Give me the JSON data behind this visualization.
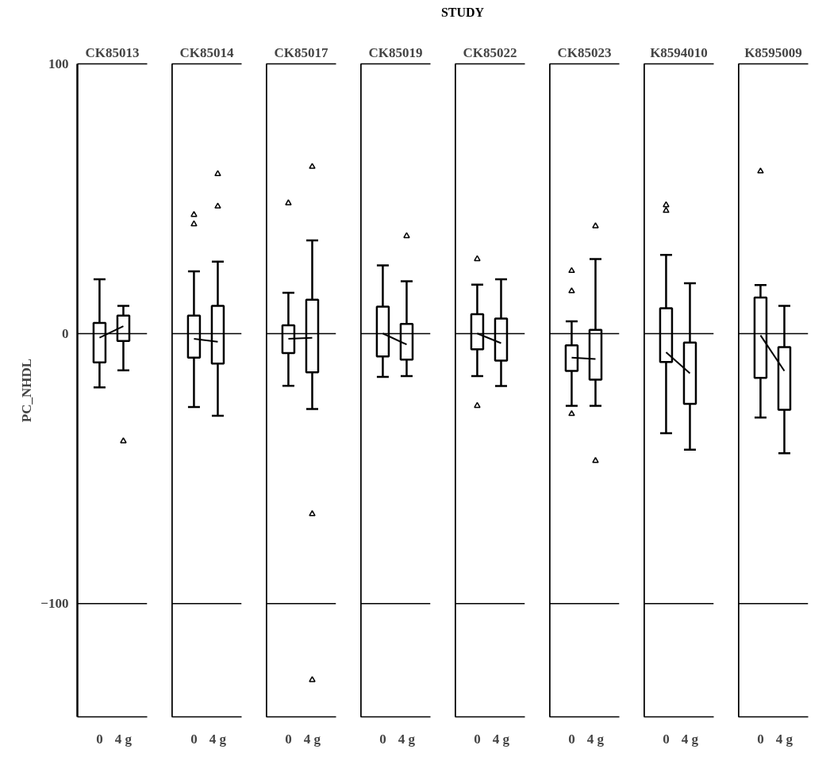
{
  "chart_data": [
    {
      "type": "box",
      "title": "CK85013",
      "ylabel": "PC_NHDL",
      "annotations": [
        "STUDY"
      ],
      "categories": [
        "0",
        "4 g"
      ],
      "ylim": [
        -142,
        100
      ],
      "yticks": [
        100,
        0,
        -100
      ],
      "marker": "triangle",
      "grid": false,
      "ref_lines": [
        {
          "axis": "y",
          "value": 0
        },
        {
          "axis": "y",
          "value": -100
        }
      ],
      "boxes": [
        {
          "low": -19.9,
          "q1": -10.6,
          "median": -1.5,
          "q3": 4.0,
          "high": 20.2
        },
        {
          "low": -13.6,
          "q1": -2.7,
          "median": 2.8,
          "q3": 6.7,
          "high": 10.3,
          "outliers": [
            -39.8
          ]
        }
      ],
      "series": [
        {
          "type": "line",
          "values": [
            -1.5,
            2.8
          ],
          "marker": "none"
        }
      ]
    },
    {
      "type": "box",
      "title": "CK85014",
      "categories": [
        "0",
        "4 g"
      ],
      "ylim": [
        -142,
        100
      ],
      "tick_labels": "x",
      "marker": "triangle",
      "grid": false,
      "ref_lines": [
        {
          "axis": "y",
          "value": 0
        },
        {
          "axis": "y",
          "value": -100
        }
      ],
      "boxes": [
        {
          "low": -27.2,
          "q1": -8.9,
          "median": -1.9,
          "q3": 6.7,
          "high": 23.1,
          "outliers": [
            44.1,
            40.6
          ]
        },
        {
          "low": -30.4,
          "q1": -11.1,
          "median": -3.0,
          "q3": 10.3,
          "high": 26.7,
          "outliers": [
            59.2,
            47.2
          ]
        }
      ],
      "series": [
        {
          "type": "line",
          "values": [
            -1.9,
            -3.0
          ],
          "marker": "none"
        }
      ]
    },
    {
      "type": "box",
      "title": "CK85017",
      "categories": [
        "0",
        "4 g"
      ],
      "ylim": [
        -142,
        100
      ],
      "tick_labels": "x",
      "marker": "triangle",
      "grid": false,
      "ref_lines": [
        {
          "axis": "y",
          "value": 0
        },
        {
          "axis": "y",
          "value": -100
        }
      ],
      "boxes": [
        {
          "low": -19.3,
          "q1": -7.2,
          "median": -1.9,
          "q3": 3.1,
          "high": 15.2,
          "outliers": [
            48.4
          ]
        },
        {
          "low": -27.9,
          "q1": -14.3,
          "median": -1.5,
          "q3": 12.6,
          "high": 34.6,
          "outliers": [
            61.9,
            -66.8,
            -128.3
          ]
        }
      ],
      "series": [
        {
          "type": "line",
          "values": [
            -1.9,
            -1.5
          ],
          "marker": "none"
        }
      ]
    },
    {
      "type": "box",
      "title": "CK85019",
      "categories": [
        "0",
        "4 g"
      ],
      "ylim": [
        -142,
        100
      ],
      "tick_labels": "x",
      "marker": "triangle",
      "grid": false,
      "ref_lines": [
        {
          "axis": "y",
          "value": 0
        },
        {
          "axis": "y",
          "value": -100
        }
      ],
      "boxes": [
        {
          "low": -16.0,
          "q1": -8.4,
          "median": 0.1,
          "q3": 10.0,
          "high": 25.3
        },
        {
          "low": -15.7,
          "q1": -9.6,
          "median": -4.0,
          "q3": 3.6,
          "high": 19.4,
          "outliers": [
            36.2
          ]
        }
      ],
      "series": [
        {
          "type": "line",
          "values": [
            0.1,
            -4.0
          ],
          "marker": "none"
        }
      ]
    },
    {
      "type": "box",
      "title": "CK85022",
      "categories": [
        "0",
        "4 g"
      ],
      "ylim": [
        -142,
        100
      ],
      "tick_labels": "x",
      "marker": "triangle",
      "grid": false,
      "ref_lines": [
        {
          "axis": "y",
          "value": 0
        },
        {
          "axis": "y",
          "value": -100
        }
      ],
      "boxes": [
        {
          "low": -15.7,
          "q1": -5.8,
          "median": 0.1,
          "q3": 7.2,
          "high": 18.2,
          "outliers": [
            27.7,
            -26.7
          ]
        },
        {
          "low": -19.4,
          "q1": -10.0,
          "median": -3.5,
          "q3": 5.6,
          "high": 20.2
        }
      ],
      "series": [
        {
          "type": "line",
          "values": [
            0.1,
            -3.5
          ],
          "marker": "none"
        }
      ]
    },
    {
      "type": "box",
      "title": "CK85023",
      "categories": [
        "0",
        "4 g"
      ],
      "ylim": [
        -142,
        100
      ],
      "tick_labels": "x",
      "marker": "triangle",
      "grid": false,
      "ref_lines": [
        {
          "axis": "y",
          "value": 0
        },
        {
          "axis": "y",
          "value": -100
        }
      ],
      "boxes": [
        {
          "low": -26.7,
          "q1": -13.8,
          "median": -8.9,
          "q3": -4.3,
          "high": 4.6,
          "outliers": [
            23.3,
            15.8,
            -29.7
          ]
        },
        {
          "low": -26.7,
          "q1": -17.0,
          "median": -9.4,
          "q3": 1.4,
          "high": 27.7,
          "outliers": [
            39.9,
            -47.1
          ]
        }
      ],
      "series": [
        {
          "type": "line",
          "values": [
            -8.9,
            -9.4
          ],
          "marker": "none"
        }
      ]
    },
    {
      "type": "box",
      "title": "K8594010",
      "categories": [
        "0",
        "4 g"
      ],
      "ylim": [
        -142,
        100
      ],
      "tick_labels": "x",
      "marker": "triangle",
      "grid": false,
      "ref_lines": [
        {
          "axis": "y",
          "value": 0
        },
        {
          "axis": "y",
          "value": -100
        }
      ],
      "boxes": [
        {
          "low": -36.9,
          "q1": -10.5,
          "median": -6.9,
          "q3": 9.4,
          "high": 29.2,
          "outliers": [
            47.7,
            45.6
          ]
        },
        {
          "low": -43.0,
          "q1": -26.0,
          "median": -14.7,
          "q3": -3.3,
          "high": 18.7
        }
      ],
      "series": [
        {
          "type": "line",
          "values": [
            -6.9,
            -14.7
          ],
          "marker": "none"
        }
      ]
    },
    {
      "type": "box",
      "title": "K8595009",
      "categories": [
        "0",
        "4 g"
      ],
      "ylim": [
        -142,
        100
      ],
      "tick_labels": "x",
      "marker": "triangle",
      "grid": false,
      "ref_lines": [
        {
          "axis": "y",
          "value": 0
        },
        {
          "axis": "y",
          "value": -100
        }
      ],
      "boxes": [
        {
          "low": -31.1,
          "q1": -16.4,
          "median": -0.6,
          "q3": 13.4,
          "high": 18.0,
          "outliers": [
            60.2
          ]
        },
        {
          "low": -44.3,
          "q1": -28.2,
          "median": -13.8,
          "q3": -5.0,
          "high": 10.3
        }
      ],
      "series": [
        {
          "type": "line",
          "values": [
            -0.6,
            -13.8
          ],
          "marker": "none"
        }
      ]
    }
  ]
}
